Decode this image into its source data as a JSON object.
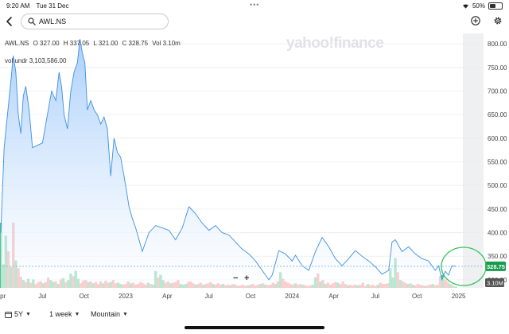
{
  "status": {
    "time": "9:20 AM",
    "date": "Tue 31 Dec",
    "battery": "50%",
    "battery_level": 0.5
  },
  "search": {
    "value": "AWL.NS"
  },
  "watermark": "yahoo!finance",
  "ohlc": {
    "symbol": "AWL.NS",
    "o": "O 327.00",
    "h": "H 337.05",
    "l": "L 321.00",
    "c": "C 328.75",
    "vol": "Vol 3.10m"
  },
  "indicator": {
    "name": "vol undr",
    "value": "3,103,586.00"
  },
  "zoom": {
    "minus": "−",
    "plus": "+"
  },
  "toolbar": {
    "range": "5Y",
    "interval": "1 week",
    "theme": "Mountain"
  },
  "colors": {
    "line": "#3d8fe0",
    "fill_top": "#a6cdfb",
    "up": "#3fbf81",
    "down": "#ef7a7a",
    "price_tag": "#1a9c50",
    "annotation": "#38c25a"
  },
  "chart_data": {
    "type": "area",
    "x_tick_labels": [
      "Apr",
      "Jul",
      "Oct",
      "2023",
      "Apr",
      "Jul",
      "Oct",
      "2024",
      "Apr",
      "Jul",
      "Oct",
      "2025"
    ],
    "y_ticks": [
      300,
      350,
      400,
      450,
      500,
      550,
      600,
      650,
      700,
      750,
      800
    ],
    "y_tick_labels": [
      "300.00",
      "350.00",
      "400.00",
      "450.00",
      "500.00",
      "550.00",
      "600.00",
      "650.00",
      "700.00",
      "750.00",
      "800.00"
    ],
    "ylim": [
      283,
      812
    ],
    "last_price": 328.75,
    "last_price_label": "328.75",
    "volume_label": "3.10M",
    "price": [
      [
        2022.25,
        400
      ],
      [
        2022.27,
        580
      ],
      [
        2022.29,
        650
      ],
      [
        2022.31,
        720
      ],
      [
        2022.325,
        775
      ],
      [
        2022.34,
        740
      ],
      [
        2022.355,
        650
      ],
      [
        2022.37,
        610
      ],
      [
        2022.385,
        690
      ],
      [
        2022.4,
        710
      ],
      [
        2022.42,
        660
      ],
      [
        2022.44,
        580
      ],
      [
        2022.47,
        585
      ],
      [
        2022.5,
        590
      ],
      [
        2022.53,
        650
      ],
      [
        2022.555,
        700
      ],
      [
        2022.58,
        680
      ],
      [
        2022.6,
        740
      ],
      [
        2022.615,
        710
      ],
      [
        2022.63,
        650
      ],
      [
        2022.65,
        620
      ],
      [
        2022.67,
        700
      ],
      [
        2022.69,
        740
      ],
      [
        2022.71,
        760
      ],
      [
        2022.725,
        810
      ],
      [
        2022.74,
        780
      ],
      [
        2022.755,
        760
      ],
      [
        2022.77,
        660
      ],
      [
        2022.79,
        680
      ],
      [
        2022.81,
        660
      ],
      [
        2022.83,
        650
      ],
      [
        2022.85,
        630
      ],
      [
        2022.87,
        645
      ],
      [
        2022.89,
        620
      ],
      [
        2022.91,
        520
      ],
      [
        2022.93,
        600
      ],
      [
        2022.95,
        570
      ],
      [
        2022.97,
        560
      ],
      [
        2023.0,
        500
      ],
      [
        2023.02,
        455
      ],
      [
        2023.04,
        430
      ],
      [
        2023.06,
        410
      ],
      [
        2023.08,
        385
      ],
      [
        2023.1,
        360
      ],
      [
        2023.14,
        400
      ],
      [
        2023.18,
        415
      ],
      [
        2023.22,
        410
      ],
      [
        2023.26,
        405
      ],
      [
        2023.3,
        385
      ],
      [
        2023.34,
        410
      ],
      [
        2023.38,
        455
      ],
      [
        2023.42,
        440
      ],
      [
        2023.46,
        420
      ],
      [
        2023.5,
        405
      ],
      [
        2023.54,
        415
      ],
      [
        2023.58,
        400
      ],
      [
        2023.62,
        395
      ],
      [
        2023.66,
        380
      ],
      [
        2023.7,
        365
      ],
      [
        2023.74,
        355
      ],
      [
        2023.78,
        340
      ],
      [
        2023.82,
        320
      ],
      [
        2023.86,
        300
      ],
      [
        2023.88,
        310
      ],
      [
        2023.92,
        362
      ],
      [
        2023.96,
        355
      ],
      [
        2024.0,
        340
      ],
      [
        2024.02,
        352
      ],
      [
        2024.06,
        330
      ],
      [
        2024.1,
        320
      ],
      [
        2024.14,
        360
      ],
      [
        2024.18,
        390
      ],
      [
        2024.22,
        370
      ],
      [
        2024.26,
        345
      ],
      [
        2024.3,
        330
      ],
      [
        2024.34,
        345
      ],
      [
        2024.38,
        362
      ],
      [
        2024.42,
        350
      ],
      [
        2024.46,
        340
      ],
      [
        2024.5,
        328
      ],
      [
        2024.54,
        312
      ],
      [
        2024.58,
        320
      ],
      [
        2024.6,
        380
      ],
      [
        2024.62,
        385
      ],
      [
        2024.66,
        360
      ],
      [
        2024.7,
        370
      ],
      [
        2024.74,
        355
      ],
      [
        2024.78,
        345
      ],
      [
        2024.82,
        340
      ],
      [
        2024.86,
        320
      ],
      [
        2024.88,
        330
      ],
      [
        2024.9,
        300
      ],
      [
        2024.92,
        318
      ],
      [
        2024.94,
        310
      ],
      [
        2024.96,
        330
      ],
      [
        2024.985,
        328.75
      ]
    ],
    "volume": [
      [
        2022.25,
        1.0,
        "up"
      ],
      [
        2022.265,
        0.36,
        "up"
      ],
      [
        2022.28,
        0.8,
        "up"
      ],
      [
        2022.295,
        0.56,
        "down"
      ],
      [
        2022.31,
        0.32,
        "up"
      ],
      [
        2022.325,
        1.0,
        "down"
      ],
      [
        2022.34,
        0.42,
        "up"
      ],
      [
        2022.355,
        0.3,
        "down"
      ],
      [
        2022.37,
        0.17,
        "down"
      ],
      [
        2022.385,
        0.12,
        "up"
      ],
      [
        2022.4,
        0.09,
        "down"
      ],
      [
        2022.415,
        0.14,
        "up"
      ],
      [
        2022.43,
        0.08,
        "down"
      ],
      [
        2022.445,
        0.13,
        "up"
      ],
      [
        2022.46,
        0.06,
        "down"
      ],
      [
        2022.475,
        0.09,
        "down"
      ],
      [
        2022.49,
        0.1,
        "down"
      ],
      [
        2022.505,
        0.07,
        "up"
      ],
      [
        2022.52,
        0.09,
        "down"
      ],
      [
        2022.535,
        0.16,
        "down"
      ],
      [
        2022.55,
        0.12,
        "up"
      ],
      [
        2022.565,
        0.09,
        "up"
      ],
      [
        2022.58,
        0.1,
        "down"
      ],
      [
        2022.595,
        0.06,
        "up"
      ],
      [
        2022.61,
        0.13,
        "down"
      ],
      [
        2022.625,
        0.15,
        "up"
      ],
      [
        2022.64,
        0.09,
        "down"
      ],
      [
        2022.655,
        0.12,
        "up"
      ],
      [
        2022.67,
        0.22,
        "up"
      ],
      [
        2022.685,
        0.18,
        "down"
      ],
      [
        2022.7,
        0.26,
        "up"
      ],
      [
        2022.715,
        0.14,
        "up"
      ],
      [
        2022.73,
        0.07,
        "down"
      ],
      [
        2022.745,
        0.11,
        "down"
      ],
      [
        2022.76,
        0.12,
        "down"
      ],
      [
        2022.775,
        0.09,
        "up"
      ],
      [
        2022.79,
        0.1,
        "down"
      ],
      [
        2022.805,
        0.07,
        "up"
      ],
      [
        2022.82,
        0.09,
        "down"
      ],
      [
        2022.835,
        0.06,
        "down"
      ],
      [
        2022.85,
        0.1,
        "down"
      ],
      [
        2022.865,
        0.07,
        "up"
      ],
      [
        2022.88,
        0.11,
        "down"
      ],
      [
        2022.895,
        0.08,
        "down"
      ],
      [
        2022.91,
        0.09,
        "up"
      ],
      [
        2022.925,
        0.12,
        "down"
      ],
      [
        2022.94,
        0.07,
        "down"
      ],
      [
        2022.955,
        0.08,
        "up"
      ],
      [
        2022.97,
        0.06,
        "up"
      ],
      [
        2022.985,
        0.05,
        "down"
      ],
      [
        2023.0,
        0.06,
        "down"
      ],
      [
        2023.015,
        0.1,
        "down"
      ],
      [
        2023.03,
        0.07,
        "up"
      ],
      [
        2023.045,
        0.08,
        "down"
      ],
      [
        2023.06,
        0.05,
        "down"
      ],
      [
        2023.075,
        0.06,
        "down"
      ],
      [
        2023.09,
        0.09,
        "down"
      ],
      [
        2023.105,
        0.07,
        "down"
      ],
      [
        2023.12,
        0.05,
        "down"
      ],
      [
        2023.135,
        0.08,
        "up"
      ],
      [
        2023.15,
        0.06,
        "down"
      ],
      [
        2023.165,
        0.05,
        "up"
      ],
      [
        2023.18,
        0.26,
        "up"
      ],
      [
        2023.195,
        0.16,
        "down"
      ],
      [
        2023.21,
        0.2,
        "up"
      ],
      [
        2023.225,
        0.12,
        "up"
      ],
      [
        2023.24,
        0.08,
        "down"
      ],
      [
        2023.255,
        0.1,
        "down"
      ],
      [
        2023.27,
        0.07,
        "up"
      ],
      [
        2023.285,
        0.08,
        "down"
      ],
      [
        2023.3,
        0.09,
        "down"
      ],
      [
        2023.315,
        0.12,
        "down"
      ],
      [
        2023.33,
        0.06,
        "up"
      ],
      [
        2023.345,
        0.05,
        "up"
      ],
      [
        2023.36,
        0.06,
        "up"
      ],
      [
        2023.375,
        0.09,
        "down"
      ],
      [
        2023.39,
        0.1,
        "down"
      ],
      [
        2023.405,
        0.07,
        "down"
      ],
      [
        2023.42,
        0.05,
        "up"
      ],
      [
        2023.435,
        0.06,
        "down"
      ],
      [
        2023.45,
        0.08,
        "down"
      ],
      [
        2023.465,
        0.05,
        "up"
      ],
      [
        2023.48,
        0.06,
        "down"
      ],
      [
        2023.495,
        0.07,
        "down"
      ],
      [
        2023.51,
        0.09,
        "down"
      ],
      [
        2023.525,
        0.06,
        "up"
      ],
      [
        2023.54,
        0.05,
        "down"
      ],
      [
        2023.555,
        0.07,
        "down"
      ],
      [
        2023.57,
        0.05,
        "down"
      ],
      [
        2023.585,
        0.06,
        "up"
      ],
      [
        2023.6,
        0.04,
        "down"
      ],
      [
        2023.615,
        0.05,
        "down"
      ],
      [
        2023.63,
        0.04,
        "up"
      ],
      [
        2023.645,
        0.06,
        "down"
      ],
      [
        2023.66,
        0.05,
        "down"
      ],
      [
        2023.675,
        0.03,
        "up"
      ],
      [
        2023.69,
        0.04,
        "down"
      ],
      [
        2023.705,
        0.05,
        "down"
      ],
      [
        2023.72,
        0.03,
        "down"
      ],
      [
        2023.735,
        0.04,
        "up"
      ],
      [
        2023.75,
        0.05,
        "down"
      ],
      [
        2023.765,
        0.06,
        "down"
      ],
      [
        2023.78,
        0.04,
        "down"
      ],
      [
        2023.795,
        0.05,
        "down"
      ],
      [
        2023.81,
        0.06,
        "up"
      ],
      [
        2023.825,
        0.07,
        "down"
      ],
      [
        2023.84,
        0.05,
        "up"
      ],
      [
        2023.855,
        0.04,
        "down"
      ],
      [
        2023.87,
        0.05,
        "down"
      ],
      [
        2023.885,
        0.08,
        "down"
      ],
      [
        2023.9,
        0.06,
        "up"
      ],
      [
        2023.915,
        0.1,
        "down"
      ],
      [
        2023.93,
        0.24,
        "up"
      ],
      [
        2023.945,
        0.14,
        "down"
      ],
      [
        2023.96,
        0.1,
        "down"
      ],
      [
        2023.975,
        0.08,
        "down"
      ],
      [
        2023.99,
        0.06,
        "down"
      ],
      [
        2024.005,
        0.05,
        "down"
      ],
      [
        2024.02,
        0.07,
        "up"
      ],
      [
        2024.035,
        0.05,
        "down"
      ],
      [
        2024.05,
        0.06,
        "down"
      ],
      [
        2024.065,
        0.05,
        "up"
      ],
      [
        2024.08,
        0.04,
        "down"
      ],
      [
        2024.095,
        0.03,
        "down"
      ],
      [
        2024.11,
        0.04,
        "down"
      ],
      [
        2024.125,
        0.05,
        "up"
      ],
      [
        2024.14,
        0.16,
        "up"
      ],
      [
        2024.155,
        0.22,
        "down"
      ],
      [
        2024.17,
        0.1,
        "up"
      ],
      [
        2024.185,
        0.12,
        "down"
      ],
      [
        2024.2,
        0.06,
        "up"
      ],
      [
        2024.215,
        0.08,
        "down"
      ],
      [
        2024.23,
        0.05,
        "down"
      ],
      [
        2024.245,
        0.07,
        "down"
      ],
      [
        2024.26,
        0.09,
        "down"
      ],
      [
        2024.275,
        0.08,
        "up"
      ],
      [
        2024.29,
        0.06,
        "down"
      ],
      [
        2024.305,
        0.1,
        "down"
      ],
      [
        2024.32,
        0.06,
        "down"
      ],
      [
        2024.335,
        0.04,
        "up"
      ],
      [
        2024.35,
        0.05,
        "down"
      ],
      [
        2024.365,
        0.04,
        "down"
      ],
      [
        2024.38,
        0.05,
        "down"
      ],
      [
        2024.395,
        0.04,
        "up"
      ],
      [
        2024.41,
        0.05,
        "down"
      ],
      [
        2024.425,
        0.08,
        "down"
      ],
      [
        2024.44,
        0.03,
        "down"
      ],
      [
        2024.455,
        0.06,
        "up"
      ],
      [
        2024.47,
        0.04,
        "down"
      ],
      [
        2024.485,
        0.05,
        "down"
      ],
      [
        2024.5,
        0.03,
        "down"
      ],
      [
        2024.515,
        0.05,
        "up"
      ],
      [
        2024.53,
        0.08,
        "down"
      ],
      [
        2024.545,
        0.06,
        "down"
      ],
      [
        2024.56,
        0.06,
        "down"
      ],
      [
        2024.575,
        0.07,
        "down"
      ],
      [
        2024.59,
        0.3,
        "up"
      ],
      [
        2024.605,
        0.16,
        "up"
      ],
      [
        2024.62,
        0.46,
        "up"
      ],
      [
        2024.635,
        0.24,
        "down"
      ],
      [
        2024.65,
        0.12,
        "up"
      ],
      [
        2024.665,
        0.1,
        "down"
      ],
      [
        2024.68,
        0.08,
        "down"
      ],
      [
        2024.695,
        0.06,
        "up"
      ],
      [
        2024.71,
        0.07,
        "down"
      ],
      [
        2024.725,
        0.05,
        "up"
      ],
      [
        2024.74,
        0.04,
        "down"
      ],
      [
        2024.755,
        0.06,
        "down"
      ],
      [
        2024.77,
        0.05,
        "down"
      ],
      [
        2024.785,
        0.04,
        "down"
      ],
      [
        2024.8,
        0.03,
        "up"
      ],
      [
        2024.815,
        0.04,
        "down"
      ],
      [
        2024.83,
        0.05,
        "down"
      ],
      [
        2024.845,
        0.06,
        "up"
      ],
      [
        2024.86,
        0.04,
        "down"
      ],
      [
        2024.875,
        0.05,
        "down"
      ],
      [
        2024.89,
        0.18,
        "down"
      ],
      [
        2024.905,
        0.2,
        "up"
      ],
      [
        2024.92,
        0.13,
        "down"
      ],
      [
        2024.935,
        0.09,
        "down"
      ],
      [
        2024.95,
        0.06,
        "up"
      ],
      [
        2024.965,
        0.04,
        "down"
      ],
      [
        2024.98,
        0.02,
        "up"
      ]
    ]
  }
}
